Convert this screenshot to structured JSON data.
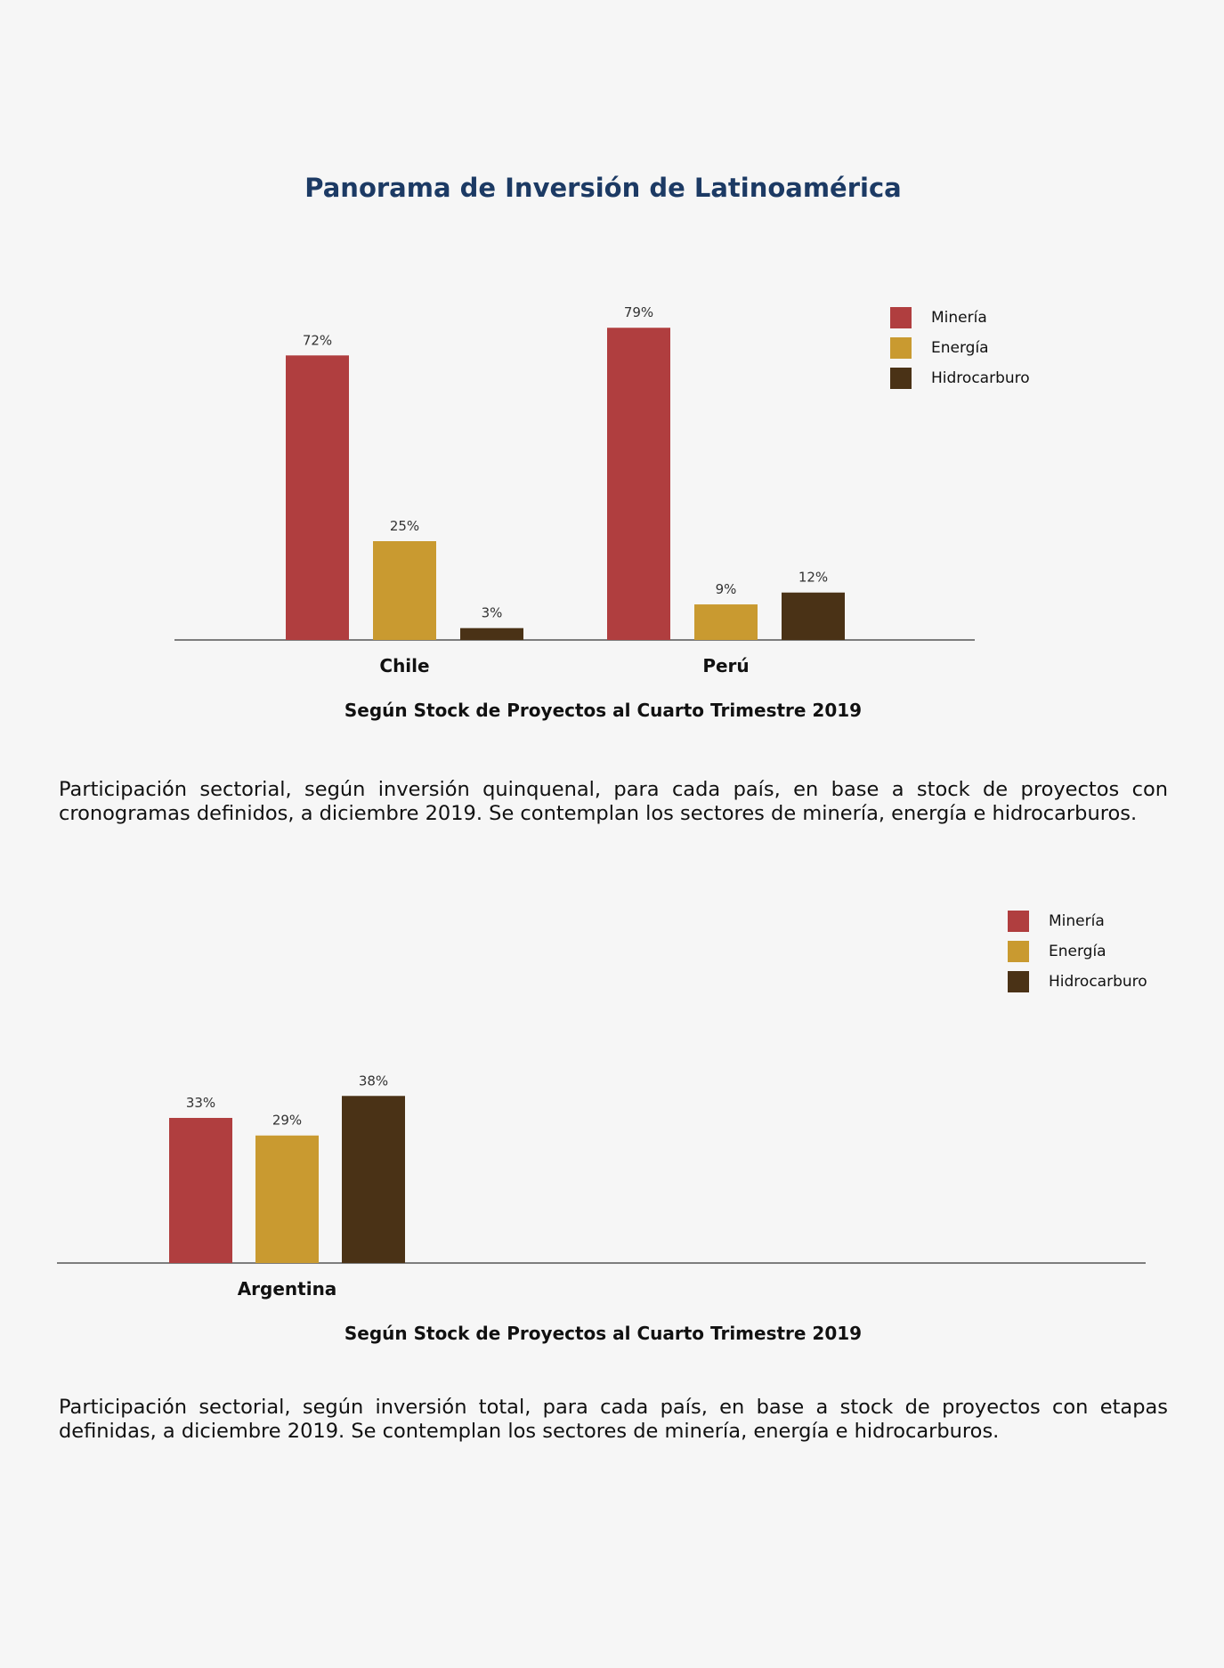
{
  "page": {
    "title": "Panorama de Inversión de Latinoamérica"
  },
  "colors": {
    "title": "#1c3a64",
    "background": "#f6f6f6",
    "axis": "#555555"
  },
  "legend": [
    {
      "label": "Minería",
      "color": "#b03e3f"
    },
    {
      "label": "Energía",
      "color": "#c99a30"
    },
    {
      "label": "Hidrocarburo",
      "color": "#4a3216"
    }
  ],
  "chart_data": [
    {
      "type": "bar",
      "categories": [
        "Chile",
        "Perú"
      ],
      "series": [
        {
          "name": "Minería",
          "values": [
            72,
            79
          ]
        },
        {
          "name": "Energía",
          "values": [
            25,
            9
          ]
        },
        {
          "name": "Hidrocarburo",
          "values": [
            3,
            12
          ]
        }
      ],
      "data_labels": [
        [
          "72%",
          "79%"
        ],
        [
          "25%",
          "9%"
        ],
        [
          "3%",
          "12%"
        ]
      ],
      "subtitle": "Según Stock de Proyectos al Cuarto Trimestre 2019",
      "ylim": [
        0,
        100
      ],
      "grid": false,
      "legend_position": "top-right"
    },
    {
      "type": "bar",
      "categories": [
        "Argentina"
      ],
      "series": [
        {
          "name": "Minería",
          "values": [
            33
          ]
        },
        {
          "name": "Energía",
          "values": [
            29
          ]
        },
        {
          "name": "Hidrocarburo",
          "values": [
            38
          ]
        }
      ],
      "data_labels": [
        [
          "33%"
        ],
        [
          "29%"
        ],
        [
          "38%"
        ]
      ],
      "subtitle": "Según Stock de Proyectos al Cuarto Trimestre 2019",
      "ylim": [
        0,
        100
      ],
      "grid": false,
      "legend_position": "top-right"
    }
  ],
  "paragraphs": [
    "Participación sectorial, según inversión quinquenal, para cada país, en base a stock de proyectos con cronogramas definidos, a diciembre 2019. Se contemplan los sectores de minería, energía e hidrocarburos.",
    "Participación sectorial, según inversión total, para cada país, en base a stock de proyectos con etapas definidas, a diciembre 2019. Se contemplan los sectores de minería, energía e hidrocarburos."
  ]
}
